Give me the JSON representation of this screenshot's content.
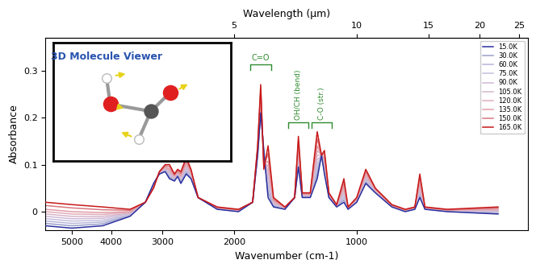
{
  "chart_data": {
    "type": "line",
    "xlabel": "Wavenumber (cm-1)",
    "ylabel": "Absorbance",
    "top_axis": {
      "label": "Wavelength (µm)",
      "ticks": [
        5,
        10,
        15,
        20,
        25
      ]
    },
    "log": "x",
    "grid": false,
    "legend": "upper right",
    "line_style": "solid",
    "xlim": [
      5800,
      380
    ],
    "xticks": [
      5000,
      4000,
      3000,
      2000,
      1000
    ],
    "ylim": [
      -0.04,
      0.37
    ],
    "yticks": [
      0,
      0.1,
      0.2,
      0.3
    ],
    "inset": {
      "title": "3D Molecule Viewer"
    },
    "annotations": [
      {
        "label": "C=O",
        "x": 1720
      },
      {
        "label": "OH/CH (bend)",
        "x": 1390
      },
      {
        "label": "C-O (str.)",
        "x": 1220
      }
    ],
    "x": [
      5800,
      5000,
      4200,
      3600,
      3300,
      3150,
      3050,
      2950,
      2880,
      2800,
      2750,
      2700,
      2620,
      2550,
      2450,
      2200,
      1950,
      1800,
      1750,
      1720,
      1690,
      1650,
      1600,
      1500,
      1420,
      1390,
      1360,
      1300,
      1250,
      1220,
      1200,
      1170,
      1120,
      1075,
      1050,
      1000,
      950,
      900,
      820,
      760,
      720,
      700,
      680,
      600,
      450
    ],
    "series": [
      {
        "name": "15.0K",
        "color": "#2b2f9e",
        "values": [
          -0.03,
          -0.035,
          -0.03,
          -0.01,
          0.02,
          0.06,
          0.08,
          0.085,
          0.07,
          0.065,
          0.075,
          0.06,
          0.08,
          0.07,
          0.03,
          0.005,
          0.0,
          0.02,
          0.12,
          0.21,
          0.13,
          0.03,
          0.01,
          0.005,
          0.03,
          0.095,
          0.03,
          0.03,
          0.07,
          0.12,
          0.08,
          0.03,
          0.01,
          0.02,
          0.005,
          0.02,
          0.06,
          0.04,
          0.01,
          0.0,
          0.005,
          0.03,
          0.005,
          0.0,
          -0.005
        ]
      },
      {
        "name": "30.0K",
        "color": "#9a9fc9",
        "values": [
          -0.025,
          -0.03,
          -0.026,
          -0.008,
          0.02,
          0.059,
          0.08,
          0.087,
          0.073,
          0.067,
          0.077,
          0.063,
          0.084,
          0.072,
          0.03,
          0.006,
          0.001,
          0.02,
          0.122,
          0.216,
          0.126,
          0.041,
          0.012,
          0.006,
          0.03,
          0.102,
          0.031,
          0.031,
          0.08,
          0.12,
          0.085,
          0.031,
          0.011,
          0.025,
          0.006,
          0.021,
          0.063,
          0.041,
          0.011,
          0.001,
          0.006,
          0.035,
          0.006,
          0.001,
          -0.004
        ]
      },
      {
        "name": "60.0K",
        "color": "#b7b7da",
        "values": [
          -0.02,
          -0.025,
          -0.022,
          -0.007,
          0.02,
          0.058,
          0.081,
          0.088,
          0.076,
          0.068,
          0.078,
          0.065,
          0.087,
          0.074,
          0.03,
          0.006,
          0.001,
          0.02,
          0.124,
          0.222,
          0.122,
          0.052,
          0.014,
          0.006,
          0.03,
          0.108,
          0.032,
          0.032,
          0.09,
          0.12,
          0.09,
          0.032,
          0.011,
          0.03,
          0.006,
          0.022,
          0.066,
          0.042,
          0.011,
          0.001,
          0.006,
          0.04,
          0.006,
          0.001,
          -0.002
        ]
      },
      {
        "name": "75.0K",
        "color": "#c6bfdc",
        "values": [
          -0.015,
          -0.02,
          -0.018,
          -0.006,
          0.02,
          0.057,
          0.082,
          0.09,
          0.079,
          0.07,
          0.08,
          0.068,
          0.091,
          0.076,
          0.03,
          0.007,
          0.002,
          0.02,
          0.126,
          0.228,
          0.118,
          0.063,
          0.016,
          0.007,
          0.03,
          0.115,
          0.033,
          0.033,
          0.1,
          0.12,
          0.095,
          0.033,
          0.012,
          0.035,
          0.007,
          0.023,
          0.069,
          0.043,
          0.012,
          0.002,
          0.007,
          0.045,
          0.007,
          0.002,
          0.0
        ]
      },
      {
        "name": "90.0K",
        "color": "#cfbad6",
        "values": [
          -0.01,
          -0.015,
          -0.014,
          -0.004,
          0.02,
          0.056,
          0.082,
          0.091,
          0.082,
          0.071,
          0.081,
          0.07,
          0.094,
          0.078,
          0.03,
          0.007,
          0.002,
          0.02,
          0.128,
          0.234,
          0.114,
          0.074,
          0.018,
          0.007,
          0.03,
          0.121,
          0.034,
          0.034,
          0.11,
          0.12,
          0.1,
          0.034,
          0.012,
          0.04,
          0.007,
          0.024,
          0.072,
          0.044,
          0.012,
          0.002,
          0.007,
          0.05,
          0.007,
          0.002,
          0.001
        ]
      },
      {
        "name": "105.0K",
        "color": "#d8b6c9",
        "values": [
          -0.005,
          -0.01,
          -0.01,
          -0.003,
          0.02,
          0.055,
          0.083,
          0.093,
          0.085,
          0.073,
          0.083,
          0.073,
          0.098,
          0.08,
          0.03,
          0.008,
          0.003,
          0.02,
          0.13,
          0.24,
          0.11,
          0.085,
          0.02,
          0.008,
          0.03,
          0.128,
          0.035,
          0.035,
          0.12,
          0.12,
          0.105,
          0.035,
          0.013,
          0.045,
          0.008,
          0.025,
          0.075,
          0.045,
          0.013,
          0.003,
          0.008,
          0.055,
          0.008,
          0.003,
          0.003
        ]
      },
      {
        "name": "120.0K",
        "color": "#e0adba",
        "values": [
          0.0,
          -0.005,
          -0.006,
          -0.001,
          0.02,
          0.054,
          0.083,
          0.094,
          0.088,
          0.074,
          0.084,
          0.075,
          0.101,
          0.082,
          0.03,
          0.008,
          0.003,
          0.02,
          0.132,
          0.246,
          0.106,
          0.096,
          0.022,
          0.008,
          0.03,
          0.134,
          0.036,
          0.036,
          0.13,
          0.12,
          0.11,
          0.036,
          0.013,
          0.05,
          0.008,
          0.026,
          0.078,
          0.046,
          0.013,
          0.003,
          0.008,
          0.06,
          0.008,
          0.003,
          0.004
        ]
      },
      {
        "name": "135.0K",
        "color": "#e29ca5",
        "values": [
          0.005,
          0.0,
          -0.002,
          0.0,
          0.02,
          0.053,
          0.084,
          0.096,
          0.091,
          0.076,
          0.086,
          0.078,
          0.105,
          0.084,
          0.03,
          0.009,
          0.004,
          0.02,
          0.134,
          0.252,
          0.102,
          0.107,
          0.024,
          0.009,
          0.03,
          0.141,
          0.037,
          0.037,
          0.14,
          0.12,
          0.115,
          0.037,
          0.014,
          0.055,
          0.009,
          0.027,
          0.081,
          0.047,
          0.014,
          0.004,
          0.009,
          0.065,
          0.009,
          0.004,
          0.006
        ]
      },
      {
        "name": "150.0K",
        "color": "#d8787e",
        "values": [
          0.013,
          0.008,
          0.004,
          0.003,
          0.02,
          0.052,
          0.084,
          0.098,
          0.096,
          0.078,
          0.088,
          0.081,
          0.11,
          0.087,
          0.03,
          0.009,
          0.004,
          0.02,
          0.137,
          0.261,
          0.096,
          0.124,
          0.027,
          0.009,
          0.03,
          0.15,
          0.039,
          0.039,
          0.155,
          0.12,
          0.123,
          0.039,
          0.014,
          0.063,
          0.009,
          0.029,
          0.086,
          0.049,
          0.014,
          0.004,
          0.009,
          0.073,
          0.009,
          0.004,
          0.008
        ]
      },
      {
        "name": "165.0K",
        "color": "#c81818",
        "values": [
          0.02,
          0.015,
          0.01,
          0.005,
          0.02,
          0.05,
          0.085,
          0.1,
          0.1,
          0.08,
          0.09,
          0.085,
          0.115,
          0.09,
          0.03,
          0.01,
          0.005,
          0.02,
          0.14,
          0.27,
          0.09,
          0.14,
          0.03,
          0.01,
          0.03,
          0.16,
          0.04,
          0.04,
          0.17,
          0.12,
          0.13,
          0.04,
          0.015,
          0.07,
          0.01,
          0.03,
          0.09,
          0.05,
          0.015,
          0.005,
          0.01,
          0.08,
          0.01,
          0.005,
          0.01
        ]
      }
    ]
  }
}
